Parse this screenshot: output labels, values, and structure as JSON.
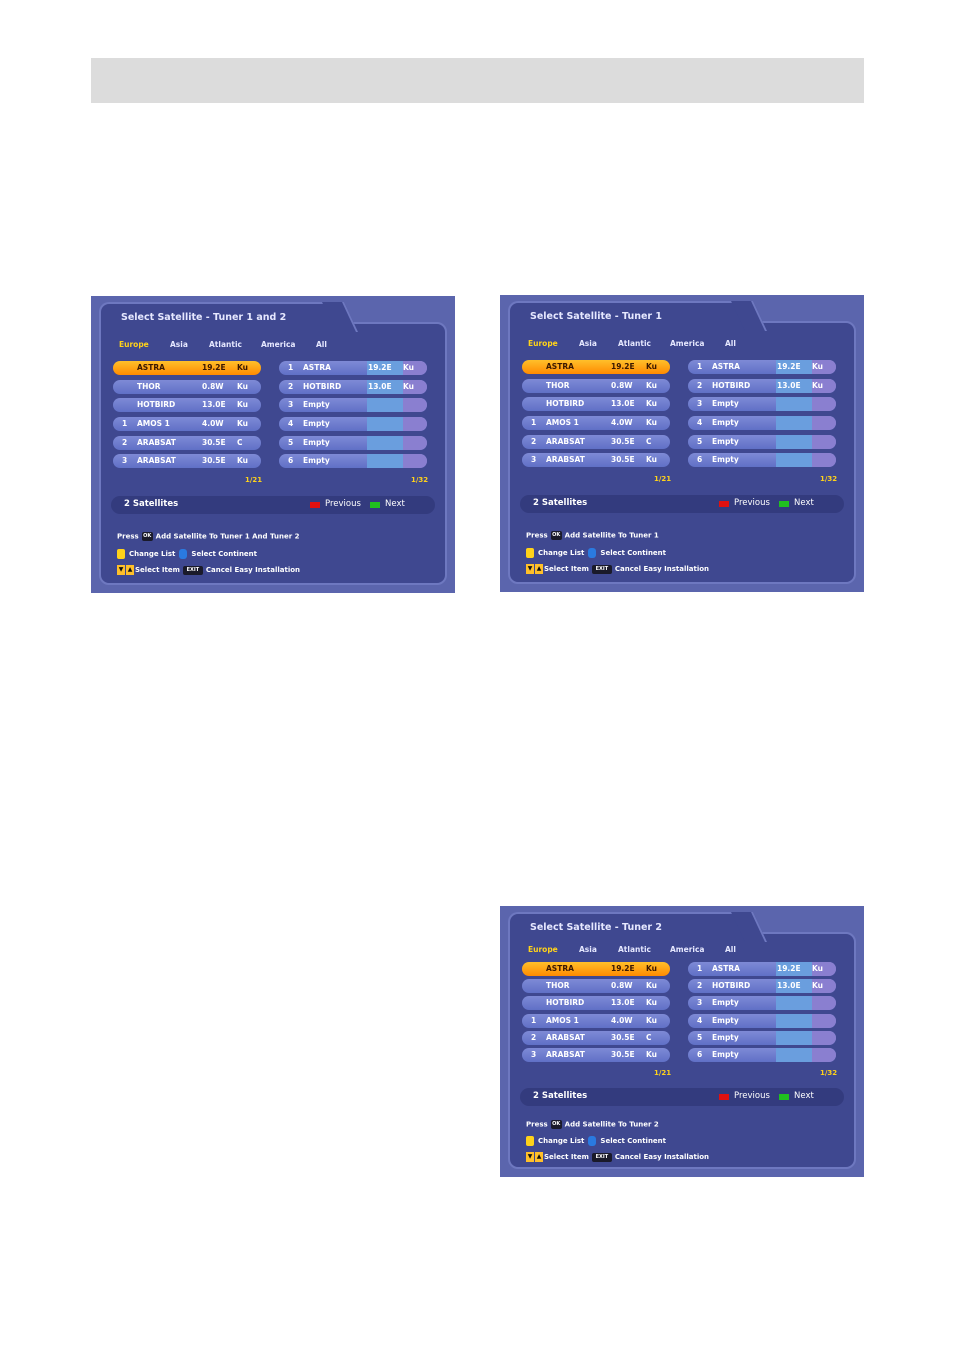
{
  "screens": [
    {
      "title": "Select Satellite - Tuner 1 and 2",
      "press_label": "Press",
      "ok_key": "OK",
      "ok_action": "Add Satellite To Tuner 1 And Tuner 2",
      "change_list": "Change List",
      "select_continent": "Select Continent",
      "select_item": "Select Item",
      "exit_key": "EXIT",
      "cancel": "Cancel Easy Installation",
      "tabs": [
        "Europe",
        "Asia",
        "Atlantic",
        "America",
        "All"
      ],
      "left_page": "1/21",
      "right_page": "1/32",
      "count": "2 Satellites",
      "previous": "Previous",
      "next": "Next",
      "left_rows": [
        {
          "num": "",
          "name": "ASTRA",
          "pos": "19.2E",
          "band": "Ku"
        },
        {
          "num": "",
          "name": "THOR",
          "pos": "0.8W",
          "band": "Ku"
        },
        {
          "num": "",
          "name": "HOTBIRD",
          "pos": "13.0E",
          "band": "Ku"
        },
        {
          "num": "1",
          "name": "AMOS 1",
          "pos": "4.0W",
          "band": "Ku"
        },
        {
          "num": "2",
          "name": "ARABSAT",
          "pos": "30.5E",
          "band": "C"
        },
        {
          "num": "3",
          "name": "ARABSAT",
          "pos": "30.5E",
          "band": "Ku"
        }
      ],
      "right_rows": [
        {
          "num": "1",
          "name": "ASTRA",
          "pos": "19.2E",
          "band": "Ku"
        },
        {
          "num": "2",
          "name": "HOTBIRD",
          "pos": "13.0E",
          "band": "Ku"
        },
        {
          "num": "3",
          "name": "Empty",
          "pos": "",
          "band": ""
        },
        {
          "num": "4",
          "name": "Empty",
          "pos": "",
          "band": ""
        },
        {
          "num": "5",
          "name": "Empty",
          "pos": "",
          "band": ""
        },
        {
          "num": "6",
          "name": "Empty",
          "pos": "",
          "band": ""
        }
      ]
    },
    {
      "title": "Select Satellite - Tuner 1",
      "press_label": "Press",
      "ok_key": "OK",
      "ok_action": "Add Satellite To Tuner 1",
      "change_list": "Change List",
      "select_continent": "Select Continent",
      "select_item": "Select Item",
      "exit_key": "EXIT",
      "cancel": "Cancel Easy Installation",
      "tabs": [
        "Europe",
        "Asia",
        "Atlantic",
        "America",
        "All"
      ],
      "left_page": "1/21",
      "right_page": "1/32",
      "count": "2 Satellites",
      "previous": "Previous",
      "next": "Next",
      "left_rows": [
        {
          "num": "",
          "name": "ASTRA",
          "pos": "19.2E",
          "band": "Ku"
        },
        {
          "num": "",
          "name": "THOR",
          "pos": "0.8W",
          "band": "Ku"
        },
        {
          "num": "",
          "name": "HOTBIRD",
          "pos": "13.0E",
          "band": "Ku"
        },
        {
          "num": "1",
          "name": "AMOS 1",
          "pos": "4.0W",
          "band": "Ku"
        },
        {
          "num": "2",
          "name": "ARABSAT",
          "pos": "30.5E",
          "band": "C"
        },
        {
          "num": "3",
          "name": "ARABSAT",
          "pos": "30.5E",
          "band": "Ku"
        }
      ],
      "right_rows": [
        {
          "num": "1",
          "name": "ASTRA",
          "pos": "19.2E",
          "band": "Ku"
        },
        {
          "num": "2",
          "name": "HOTBIRD",
          "pos": "13.0E",
          "band": "Ku"
        },
        {
          "num": "3",
          "name": "Empty",
          "pos": "",
          "band": ""
        },
        {
          "num": "4",
          "name": "Empty",
          "pos": "",
          "band": ""
        },
        {
          "num": "5",
          "name": "Empty",
          "pos": "",
          "band": ""
        },
        {
          "num": "6",
          "name": "Empty",
          "pos": "",
          "band": ""
        }
      ]
    },
    {
      "title": "Select Satellite - Tuner 2",
      "press_label": "Press",
      "ok_key": "OK",
      "ok_action": "Add Satellite To Tuner 2",
      "change_list": "Change List",
      "select_continent": "Select Continent",
      "select_item": "Select Item",
      "exit_key": "EXIT",
      "cancel": "Cancel Easy Installation",
      "tabs": [
        "Europe",
        "Asia",
        "Atlantic",
        "America",
        "All"
      ],
      "left_page": "1/21",
      "right_page": "1/32",
      "count": "2 Satellites",
      "previous": "Previous",
      "next": "Next",
      "left_rows": [
        {
          "num": "",
          "name": "ASTRA",
          "pos": "19.2E",
          "band": "Ku"
        },
        {
          "num": "",
          "name": "THOR",
          "pos": "0.8W",
          "band": "Ku"
        },
        {
          "num": "",
          "name": "HOTBIRD",
          "pos": "13.0E",
          "band": "Ku"
        },
        {
          "num": "1",
          "name": "AMOS 1",
          "pos": "4.0W",
          "band": "Ku"
        },
        {
          "num": "2",
          "name": "ARABSAT",
          "pos": "30.5E",
          "band": "C"
        },
        {
          "num": "3",
          "name": "ARABSAT",
          "pos": "30.5E",
          "band": "Ku"
        }
      ],
      "right_rows": [
        {
          "num": "1",
          "name": "ASTRA",
          "pos": "19.2E",
          "band": "Ku"
        },
        {
          "num": "2",
          "name": "HOTBIRD",
          "pos": "13.0E",
          "band": "Ku"
        },
        {
          "num": "3",
          "name": "Empty",
          "pos": "",
          "band": ""
        },
        {
          "num": "4",
          "name": "Empty",
          "pos": "",
          "band": ""
        },
        {
          "num": "5",
          "name": "Empty",
          "pos": "",
          "band": ""
        },
        {
          "num": "6",
          "name": "Empty",
          "pos": "",
          "band": ""
        }
      ]
    }
  ]
}
